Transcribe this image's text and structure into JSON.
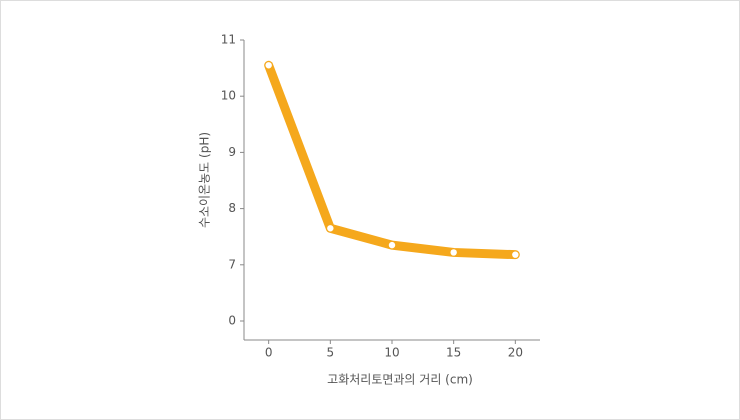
{
  "chart_data": {
    "type": "line",
    "x_label": "고화처리토면과의 거리 (cm)",
    "y_label": "수소이온농도 (pH)",
    "x": [
      0,
      5,
      10,
      15,
      20
    ],
    "series": [
      {
        "color": "#f5a81c",
        "values": [
          10.55,
          7.65,
          7.35,
          7.22,
          7.18
        ]
      }
    ],
    "xlim": [
      -2,
      22
    ],
    "xticks": [
      0,
      5,
      10,
      15,
      20
    ],
    "ylim": [
      0,
      11
    ],
    "yticks": [
      0,
      7,
      8,
      9,
      10,
      11
    ],
    "y_break": [
      0,
      7
    ]
  }
}
